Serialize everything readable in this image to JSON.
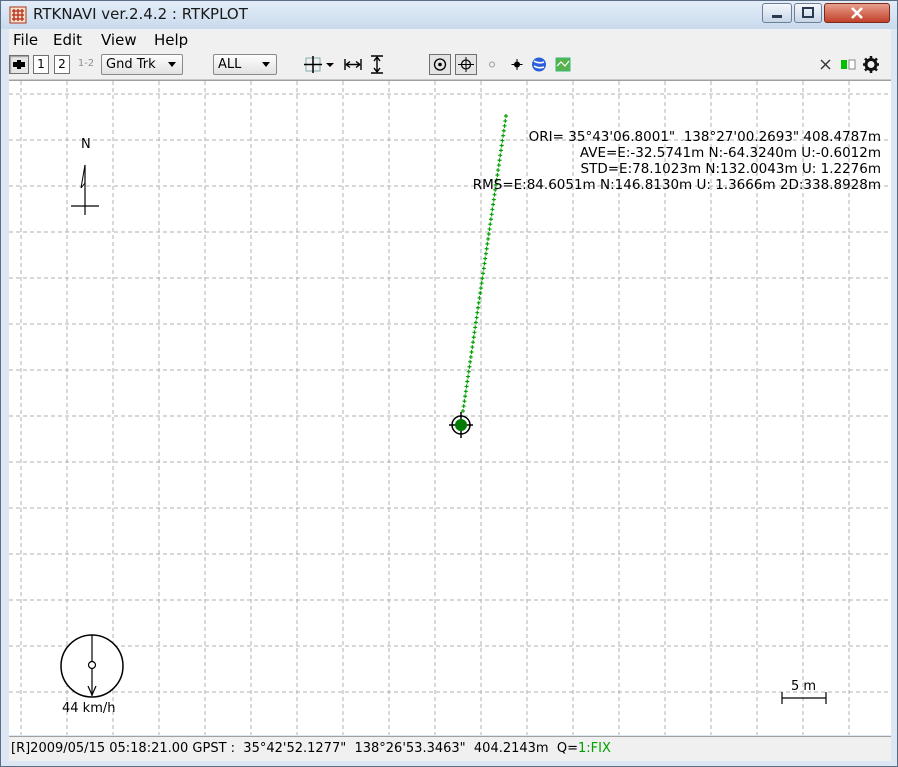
{
  "window": {
    "title": "RTKNAVI ver.2.4.2 : RTKPLOT"
  },
  "menu": {
    "items": [
      {
        "label": "File"
      },
      {
        "label": "Edit"
      },
      {
        "label": "View"
      },
      {
        "label": "Help"
      }
    ]
  },
  "toolbar": {
    "btn1_label": "1",
    "btn2_label": "2",
    "btn12_label": "1-2",
    "plot_type_selected": "Gnd Trk",
    "sat_selected": "ALL"
  },
  "plot": {
    "stats": {
      "ori": "ORI= 35°43'06.8001\"  138°27'00.2693\" 408.4787m",
      "ave": "AVE=E:-32.5741m N:-64.3240m U:-0.6012m",
      "std": "STD=E:78.1023m N:132.0043m U: 1.2276m",
      "rms": "RMS=E:84.6051m N:146.8130m U: 1.3666m 2D:338.8928m"
    },
    "north_label": "N",
    "speed_label": "44 km/h",
    "scale_label": "5 m",
    "track_color": "#00a000",
    "marker_color": "#007a00",
    "grid_color": "#b0b0b0"
  },
  "status": {
    "text": "[R]2009/05/15 05:18:21.00 GPST :  35°42'52.1277\"  138°26'53.3463\"  404.2143m  Q=",
    "fix": "1:FIX"
  }
}
